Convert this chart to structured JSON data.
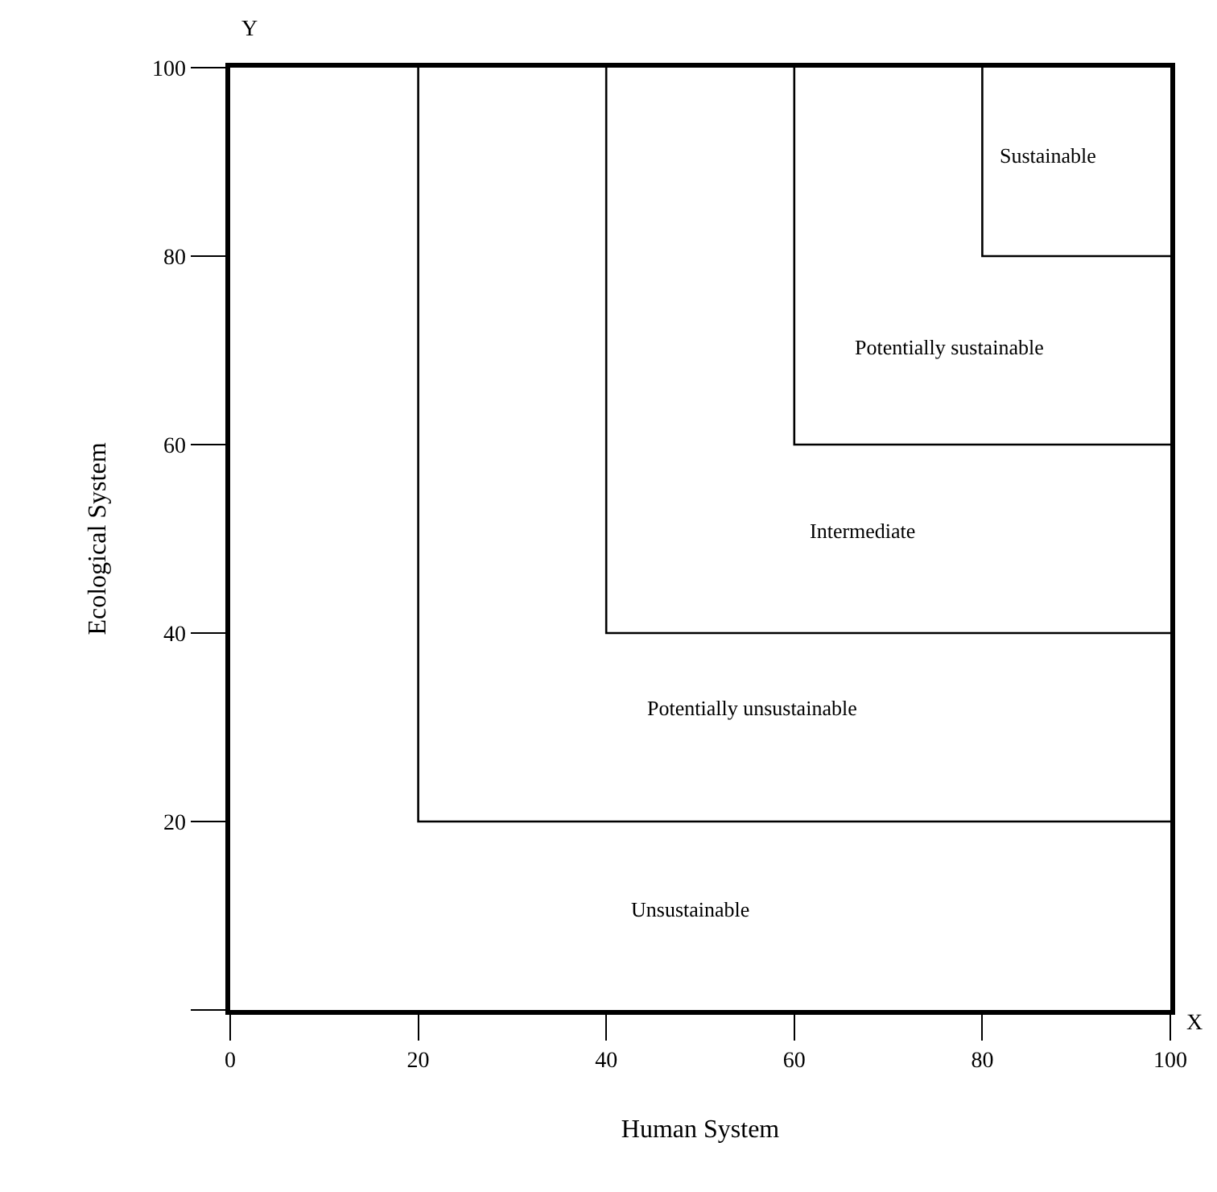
{
  "chart_data": {
    "type": "line",
    "xlabel": "Human System",
    "ylabel": "Ecological System",
    "xlim": [
      0,
      100
    ],
    "ylim": [
      0,
      100
    ],
    "xticks": [
      0,
      20,
      40,
      60,
      80,
      100
    ],
    "yticks": [
      {
        "value": 0,
        "label": null
      },
      20,
      40,
      60,
      80,
      100
    ],
    "grid": false,
    "marker": "none",
    "line_style": "solid",
    "series": [
      {
        "color": "#000000",
        "x": [
          20,
          20,
          100
        ],
        "values": [
          100,
          20,
          20
        ]
      },
      {
        "color": "#000000",
        "x": [
          40,
          40,
          100
        ],
        "values": [
          100,
          40,
          40
        ]
      },
      {
        "color": "#000000",
        "x": [
          60,
          60,
          100
        ],
        "values": [
          100,
          60,
          60
        ]
      },
      {
        "color": "#000000",
        "x": [
          80,
          80,
          100
        ],
        "values": [
          100,
          80,
          80
        ]
      }
    ],
    "annotations": [
      "X",
      "Y",
      "Sustainable",
      "Potentially sustainable",
      "Intermediate",
      "Potentially unsustainable",
      "Unsustainable"
    ]
  }
}
